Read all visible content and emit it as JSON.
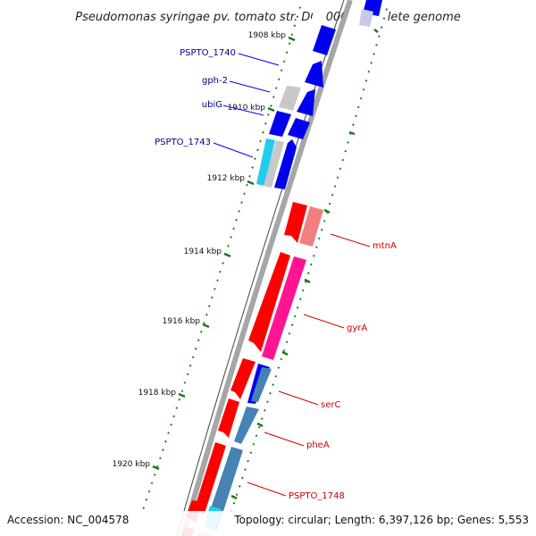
{
  "title": "Pseudomonas syringae pv. tomato str. DC3000, complete genome",
  "footer": {
    "accession": "Accession: NC_004578",
    "summary": "Topology: circular; Length: 6,397,126 bp; Genes: 5,553"
  },
  "colors": {
    "backbone": "#888888",
    "tick": "#1a7a1a",
    "forward_label": "#00008b",
    "reverse_label": "#cc0000",
    "dark_blue": "#0000ee",
    "light_gray": "#c8c8c8",
    "light_blue": "#22ccee",
    "red": "#ff0000",
    "salmon": "#f08080",
    "pink": "#ff1493",
    "steel": "#4682b4"
  },
  "ticks": [
    {
      "label": "1908 kbp"
    },
    {
      "label": "1910 kbp"
    },
    {
      "label": "1912 kbp"
    },
    {
      "label": "1914 kbp"
    },
    {
      "label": "1916 kbp"
    },
    {
      "label": "1918 kbp"
    },
    {
      "label": "1920 kbp"
    }
  ],
  "genes": [
    {
      "label": "PSPTO_1740",
      "strand": "forward"
    },
    {
      "label": "gph-2",
      "strand": "forward"
    },
    {
      "label": "ubiG",
      "strand": "forward"
    },
    {
      "label": "PSPTO_1743",
      "strand": "forward"
    },
    {
      "label": "mtnA",
      "strand": "reverse"
    },
    {
      "label": "gyrA",
      "strand": "reverse"
    },
    {
      "label": "serC",
      "strand": "reverse"
    },
    {
      "label": "pheA",
      "strand": "reverse"
    },
    {
      "label": "PSPTO_1748",
      "strand": "reverse"
    }
  ]
}
